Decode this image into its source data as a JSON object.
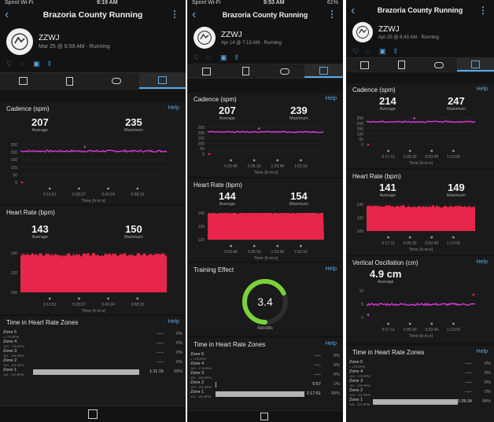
{
  "app": {
    "title": "Brazoria County Running",
    "user": "ZZWJ",
    "activity": "Running"
  },
  "screens": [
    {
      "status": {
        "left": "Sprint Wi-Fi",
        "center": "9:19 AM",
        "right": ""
      },
      "meta": "Mar 25 @ 6:59 AM · Running",
      "cadence": {
        "title": "Cadence (spm)",
        "help": "Help",
        "avg": "207",
        "avg_label": "Average",
        "max": "235",
        "max_label": "Maximum",
        "yticks": [
          "250",
          "200",
          "150",
          "100",
          "50",
          "0"
        ],
        "xticks": [
          "0:13:51",
          "0:28:37",
          "0:43:24",
          "0:58:10"
        ],
        "xlabel": "Time (h:m:s)"
      },
      "hr": {
        "title": "Heart Rate (bpm)",
        "avg": "143",
        "avg_label": "Average",
        "max": "150",
        "max_label": "Maximum",
        "yticks": [
          "140",
          "120",
          "100"
        ],
        "xticks": [
          "0:13:51",
          "0:28:37",
          "0:43:24",
          "0:58:10"
        ],
        "xlabel": "Time (h:m:s)"
      },
      "zones": {
        "title": "Time in Heart Rate Zones",
        "help": "Help",
        "rows": [
          {
            "name": "Zone 5",
            "sub": "> 178 BPM",
            "time": "--:--",
            "pct": "0%"
          },
          {
            "name": "Zone 4",
            "sub": "159 - 178 BPM",
            "time": "--:--",
            "pct": "0%"
          },
          {
            "name": "Zone 3",
            "sub": "151 - 159 BPM",
            "time": "--:--",
            "pct": "0%"
          },
          {
            "name": "Zone 2",
            "sub": "133 - 151 BPM",
            "time": "--:--",
            "pct": "0%"
          },
          {
            "name": "Zone 1",
            "sub": "115 - 133 BPM",
            "time": "1:11:15",
            "pct": "99%"
          }
        ]
      }
    },
    {
      "status": {
        "left": "Sprint Wi-Fi",
        "center": "9:53 AM",
        "right": "61%"
      },
      "meta": "Apr 14 @ 7:13 AM · Running",
      "cadence": {
        "title": "Cadence (spm)",
        "help": "Help",
        "avg": "207",
        "avg_label": "Average",
        "max": "239",
        "max_label": "Maximum",
        "yticks": [
          "250",
          "200",
          "150",
          "100",
          "50",
          "0"
        ],
        "xticks": [
          "0:20:46",
          "0:35:10",
          "1:23:49",
          "1:52:16"
        ],
        "xlabel": "Time (h:m:s)"
      },
      "hr": {
        "title": "Heart Rate (bpm)",
        "avg": "144",
        "avg_label": "Average",
        "max": "154",
        "max_label": "Maximum",
        "yticks": [
          "140",
          "130",
          "120"
        ],
        "xticks": [
          "0:20:46",
          "0:35:10",
          "1:23:49",
          "1:52:16"
        ],
        "xlabel": "Time (h:m:s)"
      },
      "effect": {
        "title": "Training Effect",
        "help": "Help",
        "value": "3.4",
        "label": "Aerobic"
      },
      "zones": {
        "title": "Time in Heart Rate Zones",
        "help": "Help",
        "rows": [
          {
            "name": "Zone 5",
            "sub": "> 178 BPM",
            "time": "--:--",
            "pct": "0%"
          },
          {
            "name": "Zone 4",
            "sub": "160 - 178 BPM",
            "time": "--:--",
            "pct": "0%"
          },
          {
            "name": "Zone 3",
            "sub": "151 - 160 BPM",
            "time": "--:--",
            "pct": "0%"
          },
          {
            "name": "Zone 2",
            "sub": "133 - 151 BPM",
            "time": "0:57",
            "pct": "1%"
          },
          {
            "name": "Zone 1",
            "sub": "115 - 133 BPM",
            "time": "2:17:51",
            "pct": "99%"
          }
        ]
      }
    },
    {
      "status": {
        "left": "",
        "center": "",
        "right": ""
      },
      "meta": "Apr 25 @ 6:43 AM · Running",
      "cadence": {
        "title": "Cadence (spm)",
        "help": "Help",
        "avg": "214",
        "avg_label": "Average",
        "max": "247",
        "max_label": "Maximum",
        "yticks": [
          "250",
          "200",
          "150",
          "100",
          "50",
          "0"
        ],
        "xticks": [
          "0:17:11",
          "0:35:30",
          "0:53:49",
          "1:12:09"
        ],
        "xlabel": "Time (h:m:s)"
      },
      "hr": {
        "title": "Heart Rate (bpm)",
        "avg": "141",
        "avg_label": "Average",
        "max": "149",
        "max_label": "Maximum",
        "yticks": [
          "140",
          "120",
          "100"
        ],
        "xticks": [
          "0:17:11",
          "0:35:30",
          "0:53:49",
          "1:12:09"
        ],
        "xlabel": "Time (h:m:s)"
      },
      "vo": {
        "title": "Vertical Oscillation (cm)",
        "help": "Help",
        "avg": "4.9 cm",
        "avg_label": "Average",
        "yticks": [
          "10",
          "5",
          "0"
        ],
        "xticks": [
          "0:17:11",
          "0:35:30",
          "0:53:49",
          "1:12:09"
        ],
        "xlabel": "Time (h:m:s)"
      },
      "zones": {
        "title": "Time in Heart Rate Zones",
        "help": "Help",
        "rows": [
          {
            "name": "Zone 5",
            "sub": "> 178 BPM",
            "time": "--:--",
            "pct": "0%"
          },
          {
            "name": "Zone 4",
            "sub": "159 - 178 BPM",
            "time": "--:--",
            "pct": "0%"
          },
          {
            "name": "Zone 3",
            "sub": "151 - 159 BPM",
            "time": "--:--",
            "pct": "0%"
          },
          {
            "name": "Zone 2",
            "sub": "133 - 151 BPM",
            "time": "--:--",
            "pct": "0%"
          },
          {
            "name": "Zone 1",
            "sub": "115 - 133 BPM",
            "time": "1:28:34",
            "pct": "99%"
          }
        ]
      }
    }
  ],
  "colors": {
    "accent": "#5aa9e6",
    "cadence": "#d43ad4",
    "hr": "#e8254a",
    "effect": "#7bd13a"
  }
}
